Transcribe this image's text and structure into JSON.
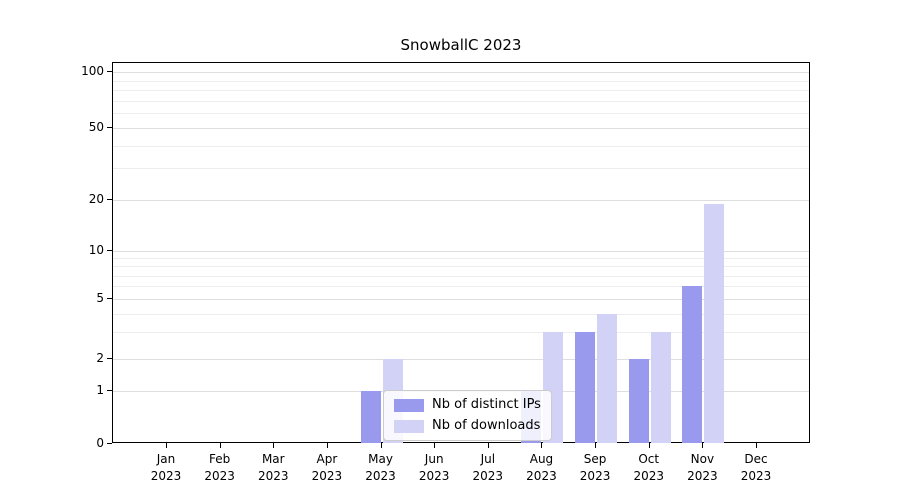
{
  "chart_data": {
    "type": "bar",
    "title": "SnowballC 2023",
    "categories": [
      {
        "month": "Jan",
        "year": "2023"
      },
      {
        "month": "Feb",
        "year": "2023"
      },
      {
        "month": "Mar",
        "year": "2023"
      },
      {
        "month": "Apr",
        "year": "2023"
      },
      {
        "month": "May",
        "year": "2023"
      },
      {
        "month": "Jun",
        "year": "2023"
      },
      {
        "month": "Jul",
        "year": "2023"
      },
      {
        "month": "Aug",
        "year": "2023"
      },
      {
        "month": "Sep",
        "year": "2023"
      },
      {
        "month": "Oct",
        "year": "2023"
      },
      {
        "month": "Nov",
        "year": "2023"
      },
      {
        "month": "Dec",
        "year": "2023"
      }
    ],
    "series": [
      {
        "name": "Nb of distinct IPs",
        "color": "#9999ee",
        "values": [
          0,
          0,
          0,
          0,
          1,
          0,
          0,
          1,
          3,
          2,
          6,
          0
        ]
      },
      {
        "name": "Nb of downloads",
        "color": "#d2d2f7",
        "values": [
          0,
          0,
          0,
          0,
          2,
          0,
          0,
          3,
          4,
          3,
          19,
          0
        ]
      }
    ],
    "yticks": [
      0,
      1,
      2,
      5,
      10,
      20,
      50,
      100
    ],
    "yscale": "log-like (symlog)",
    "ylim": [
      0,
      100
    ],
    "grid": "horizontal",
    "legend_position": "lower center"
  }
}
